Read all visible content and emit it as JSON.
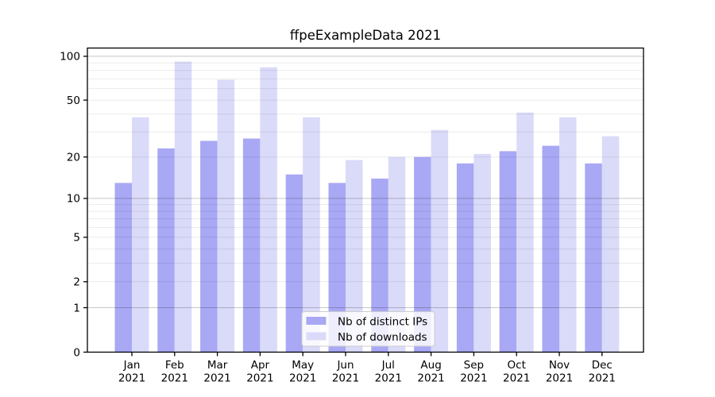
{
  "figure": {
    "title": "ffpeExampleData 2021"
  },
  "chart_data": {
    "type": "bar",
    "title": "ffpeExampleData 2021",
    "categories": [
      "Jan 2021",
      "Feb 2021",
      "Mar 2021",
      "Apr 2021",
      "May 2021",
      "Jun 2021",
      "Jul 2021",
      "Aug 2021",
      "Sep 2021",
      "Oct 2021",
      "Nov 2021",
      "Dec 2021"
    ],
    "x_months": [
      "Jan",
      "Feb",
      "Mar",
      "Apr",
      "May",
      "Jun",
      "Jul",
      "Aug",
      "Sep",
      "Oct",
      "Nov",
      "Dec"
    ],
    "x_year": "2021",
    "series": [
      {
        "name": "Nb of distinct IPs",
        "color": "#a8a8f4",
        "values": [
          13,
          23,
          26,
          27,
          15,
          13,
          14,
          20,
          18,
          22,
          24,
          18
        ]
      },
      {
        "name": "Nb of downloads",
        "color": "#dadaf9",
        "values": [
          38,
          92,
          69,
          84,
          38,
          19,
          20,
          31,
          21,
          41,
          38,
          28
        ]
      }
    ],
    "xlabel": "",
    "ylabel": "",
    "yscale": "log1p",
    "ylim": [
      0,
      114
    ],
    "yticks": [
      0,
      1,
      2,
      5,
      10,
      20,
      50,
      100
    ],
    "grid": "horizontal",
    "grid_major_values": [
      1,
      10,
      100
    ],
    "grid_minor_values": [
      2,
      3,
      4,
      5,
      6,
      7,
      8,
      9,
      20,
      30,
      40,
      50,
      60,
      70,
      80,
      90
    ],
    "legend_position": "lower center"
  },
  "legend": {
    "items": [
      {
        "label": "Nb of distinct IPs",
        "color": "#a8a8f4"
      },
      {
        "label": "Nb of downloads",
        "color": "#dadaf9"
      }
    ]
  },
  "colors": {
    "background": "#ffffff",
    "spine": "#000000",
    "text": "#000000",
    "grid_major": "#c8c8c8",
    "grid_minor": "#ebebeb",
    "legend_border": "#cccccc"
  }
}
